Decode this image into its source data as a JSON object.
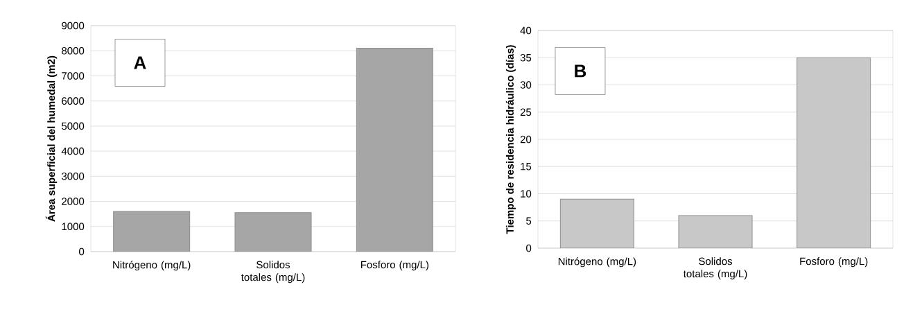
{
  "chart_data": [
    {
      "type": "bar",
      "categories": [
        "Nitrógeno (mg/L)",
        "Solidos totales (mg/L)",
        "Fosforo (mg/L)"
      ],
      "values": [
        1600,
        1550,
        8100
      ],
      "color": "#a6a6a6",
      "ylabel": "Área superficial del humedal (m2)",
      "ylim": [
        0,
        9000
      ],
      "yticks": [
        0,
        1000,
        2000,
        3000,
        4000,
        5000,
        6000,
        7000,
        8000,
        9000
      ],
      "grid": "y",
      "annotations": [
        "A"
      ]
    },
    {
      "type": "bar",
      "categories": [
        "Nitrógeno (mg/L)",
        "Solidos totales (mg/L)",
        "Fosforo (mg/L)"
      ],
      "values": [
        9,
        6,
        35
      ],
      "color": "#c8c8c8",
      "ylabel": "Tiempo de residencia hidráulico (días)",
      "ylim": [
        0,
        40
      ],
      "yticks": [
        0,
        5,
        10,
        15,
        20,
        25,
        30,
        35,
        40
      ],
      "grid": "y",
      "annotations": [
        "B"
      ]
    }
  ]
}
